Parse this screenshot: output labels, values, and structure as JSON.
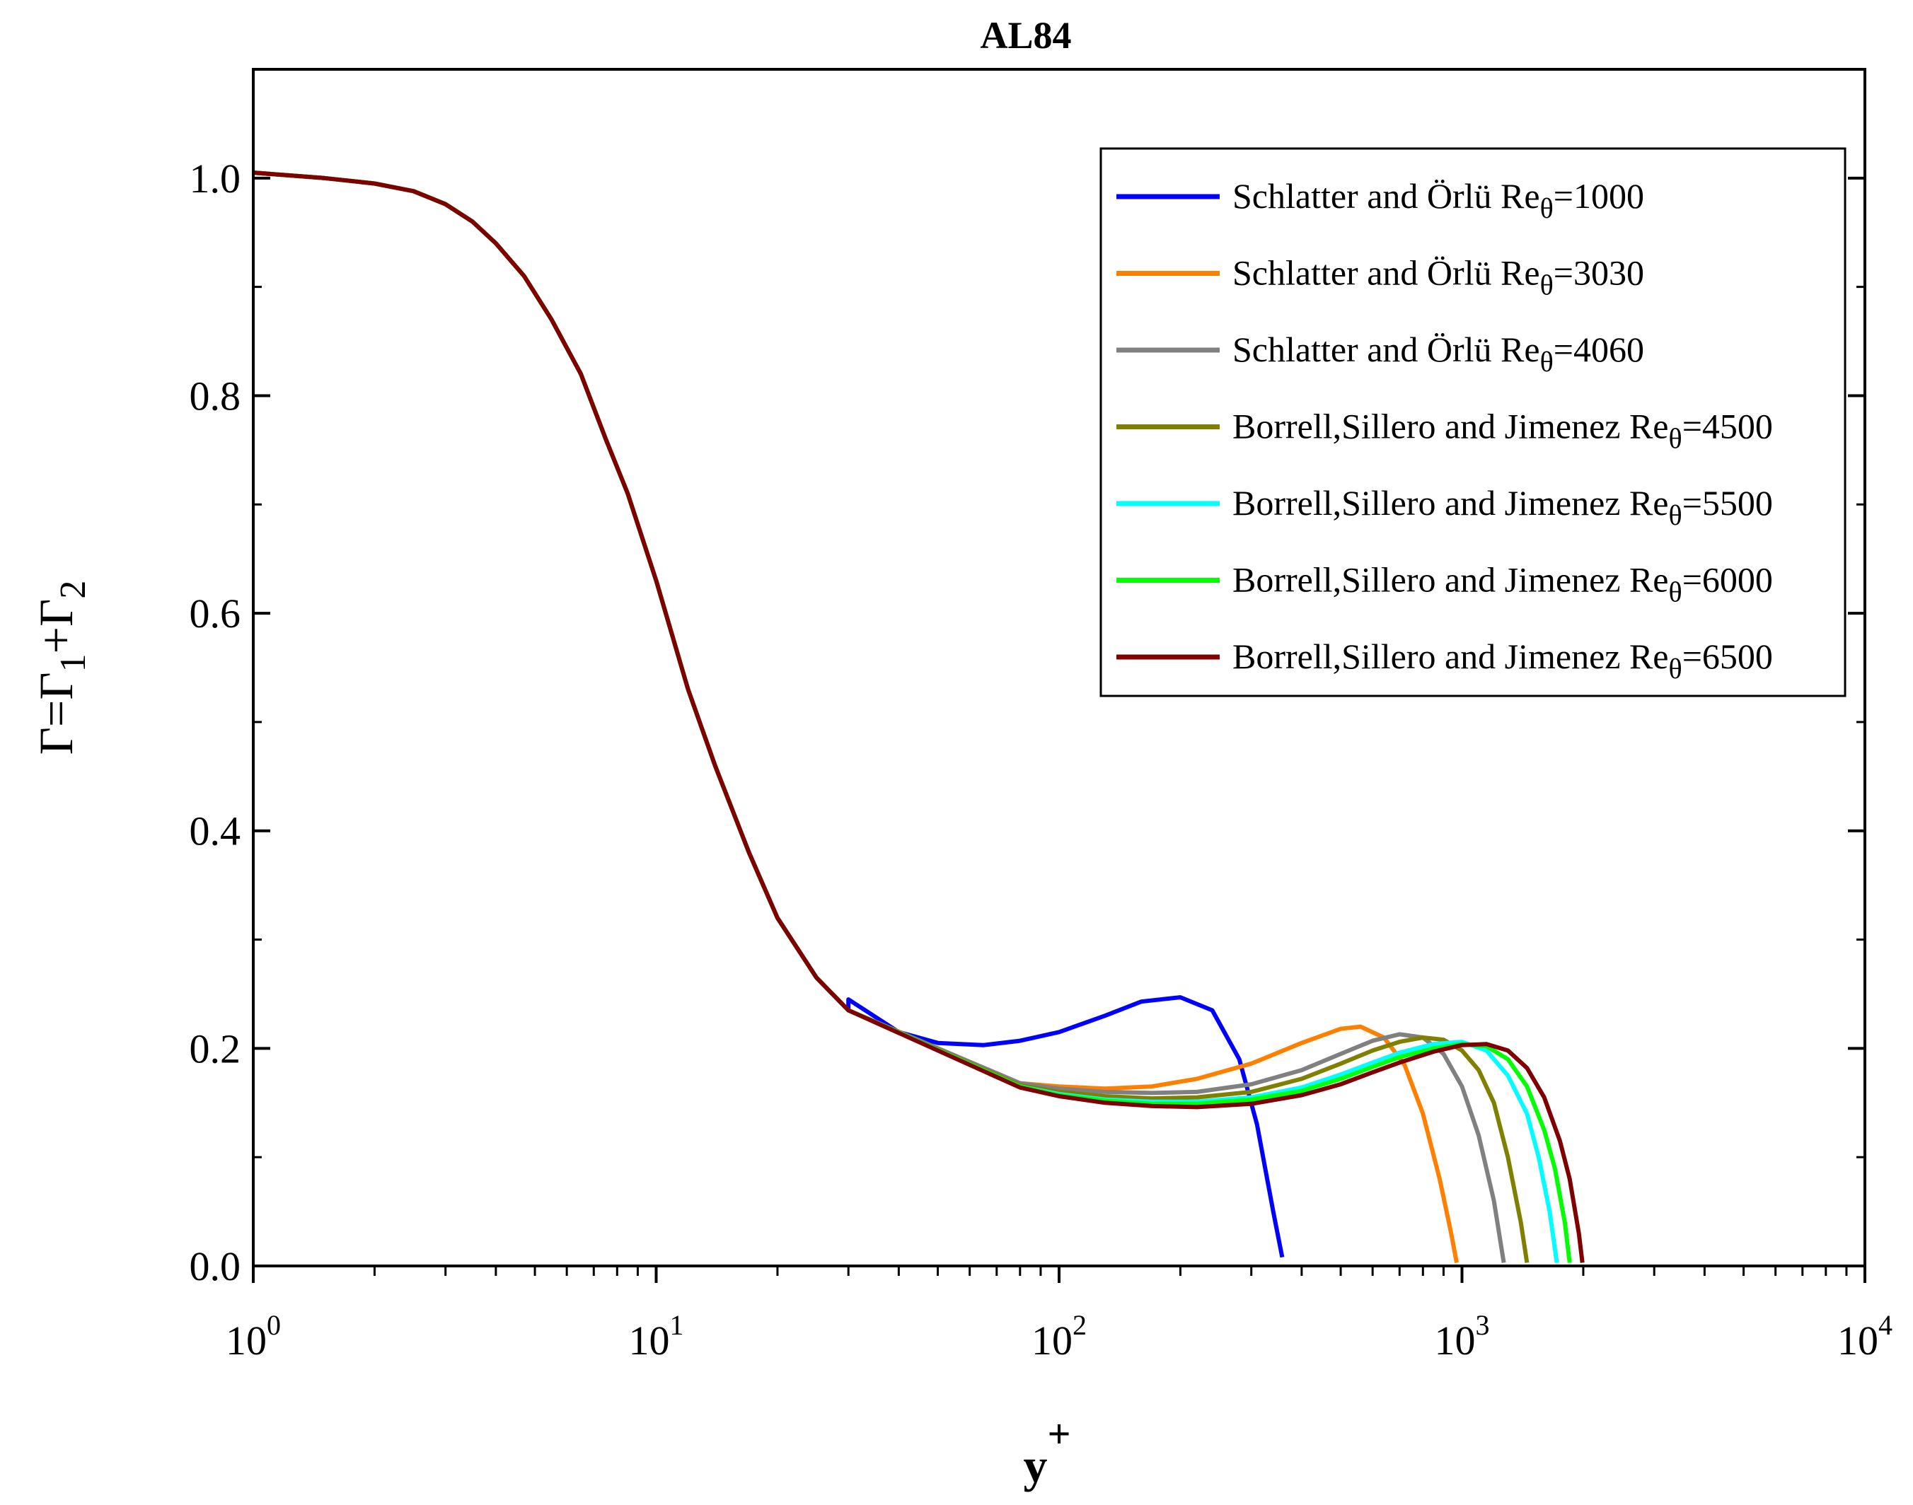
{
  "chart_data": {
    "type": "line",
    "title": "AL84",
    "xlabel": "y+",
    "ylabel": "Γ=Γ1+Γ2",
    "xscale": "log",
    "xlim": [
      1,
      10000
    ],
    "ylim": [
      0,
      1.1
    ],
    "grid": false,
    "legend_position": "top-right",
    "x_tick_labels": [
      {
        "base": "10",
        "exp": "0",
        "value": 1
      },
      {
        "base": "10",
        "exp": "1",
        "value": 10
      },
      {
        "base": "10",
        "exp": "2",
        "value": 100
      },
      {
        "base": "10",
        "exp": "3",
        "value": 1000
      },
      {
        "base": "10",
        "exp": "4",
        "value": 10000
      }
    ],
    "y_tick_labels": [
      "0.0",
      "0.2",
      "0.4",
      "0.6",
      "0.8",
      "1.0"
    ],
    "y_tick_values": [
      0,
      0.2,
      0.4,
      0.6,
      0.8,
      1.0
    ],
    "common_profile": {
      "x": [
        1,
        1.5,
        2,
        2.5,
        3,
        3.5,
        4,
        4.7,
        5.5,
        6.5,
        7.5,
        8.5,
        10,
        12,
        14,
        17,
        20,
        25,
        30,
        40,
        50
      ],
      "y": [
        1.005,
        1.0,
        0.995,
        0.988,
        0.976,
        0.96,
        0.94,
        0.91,
        0.87,
        0.82,
        0.76,
        0.71,
        0.63,
        0.53,
        0.46,
        0.38,
        0.32,
        0.265,
        0.235,
        0.2,
        0.185
      ]
    },
    "series": [
      {
        "name": "Schlatter and Örlü",
        "re": "1000",
        "color": "#0000ff",
        "x": [
          30,
          40,
          50,
          65,
          80,
          100,
          130,
          160,
          200,
          240,
          280,
          310,
          340,
          358
        ],
        "y": [
          0.245,
          0.215,
          0.205,
          0.203,
          0.207,
          0.215,
          0.23,
          0.243,
          0.247,
          0.235,
          0.19,
          0.13,
          0.05,
          0.008
        ]
      },
      {
        "name": "Schlatter and Örlü",
        "re": "3030",
        "color": "#ff8000",
        "x": [
          80,
          100,
          130,
          170,
          220,
          300,
          400,
          500,
          560,
          640,
          720,
          800,
          880,
          940,
          970
        ],
        "y": [
          0.168,
          0.165,
          0.163,
          0.165,
          0.172,
          0.186,
          0.205,
          0.218,
          0.22,
          0.21,
          0.185,
          0.14,
          0.08,
          0.03,
          0.003
        ]
      },
      {
        "name": "Schlatter and Örlü",
        "re": "4060",
        "color": "#808080",
        "x": [
          80,
          100,
          130,
          170,
          220,
          300,
          400,
          500,
          600,
          700,
          800,
          900,
          1000,
          1100,
          1200,
          1270
        ],
        "y": [
          0.168,
          0.163,
          0.16,
          0.159,
          0.16,
          0.167,
          0.18,
          0.195,
          0.207,
          0.213,
          0.21,
          0.195,
          0.165,
          0.12,
          0.06,
          0.003
        ]
      },
      {
        "name": "Borrell,Sillero and Jimenez",
        "re": "4500",
        "color": "#808000",
        "x": [
          80,
          100,
          130,
          170,
          220,
          300,
          400,
          500,
          600,
          700,
          800,
          900,
          1000,
          1100,
          1200,
          1300,
          1400,
          1450
        ],
        "y": [
          0.166,
          0.16,
          0.156,
          0.154,
          0.155,
          0.16,
          0.172,
          0.186,
          0.198,
          0.206,
          0.21,
          0.208,
          0.198,
          0.18,
          0.15,
          0.1,
          0.04,
          0.003
        ]
      },
      {
        "name": "Borrell,Sillero and Jimenez",
        "re": "5500",
        "color": "#00ffff",
        "x": [
          80,
          100,
          130,
          170,
          220,
          300,
          400,
          500,
          600,
          700,
          850,
          1000,
          1150,
          1300,
          1450,
          1550,
          1650,
          1720
        ],
        "y": [
          0.165,
          0.158,
          0.153,
          0.151,
          0.151,
          0.155,
          0.164,
          0.176,
          0.187,
          0.196,
          0.204,
          0.206,
          0.198,
          0.175,
          0.14,
          0.1,
          0.05,
          0.003
        ]
      },
      {
        "name": "Borrell,Sillero and Jimenez",
        "re": "6000",
        "color": "#00ff00",
        "x": [
          80,
          100,
          130,
          170,
          220,
          300,
          400,
          500,
          600,
          700,
          850,
          1000,
          1150,
          1300,
          1450,
          1600,
          1700,
          1800,
          1850
        ],
        "y": [
          0.165,
          0.157,
          0.152,
          0.149,
          0.149,
          0.153,
          0.161,
          0.172,
          0.183,
          0.192,
          0.2,
          0.204,
          0.202,
          0.19,
          0.165,
          0.125,
          0.09,
          0.04,
          0.003
        ]
      },
      {
        "name": "Borrell,Sillero and Jimenez",
        "re": "6500",
        "color": "#800000",
        "x": [
          80,
          100,
          130,
          170,
          220,
          300,
          400,
          500,
          600,
          700,
          850,
          1000,
          1150,
          1300,
          1450,
          1600,
          1750,
          1850,
          1950,
          1990
        ],
        "y": [
          0.164,
          0.156,
          0.15,
          0.147,
          0.146,
          0.149,
          0.157,
          0.167,
          0.178,
          0.187,
          0.197,
          0.203,
          0.204,
          0.198,
          0.182,
          0.155,
          0.115,
          0.08,
          0.03,
          0.003
        ]
      }
    ]
  }
}
